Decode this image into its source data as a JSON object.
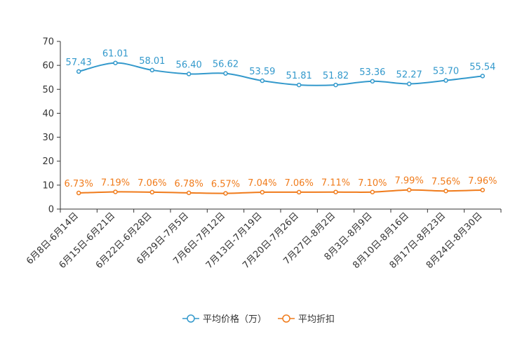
{
  "chart_data": {
    "type": "line",
    "title": "",
    "xlabel": "",
    "ylabel": "",
    "ylim": [
      0,
      70
    ],
    "yticks": [
      0,
      10,
      20,
      30,
      40,
      50,
      60,
      70
    ],
    "grid": false,
    "legend_position": "bottom-center",
    "smooth": true,
    "categories": [
      "6月8日-6月14日",
      "6月15日-6月21日",
      "6月22日-6月28日",
      "6月29日-7月5日",
      "7月6日-7月12日",
      "7月13日-7月19日",
      "7月20日-7月26日",
      "7月27日-8月2日",
      "8月3日-8月9日",
      "8月10日-8月16日",
      "8月17日-8月23日",
      "8月24日-8月30日"
    ],
    "series": [
      {
        "name": "平均价格（万）",
        "color": "#3399cc",
        "values": [
          57.43,
          61.01,
          58.01,
          56.4,
          56.62,
          53.59,
          51.81,
          51.82,
          53.36,
          52.27,
          53.7,
          55.54
        ],
        "labels": [
          "57.43",
          "61.01",
          "58.01",
          "56.40",
          "56.62",
          "53.59",
          "51.81",
          "51.82",
          "53.36",
          "52.27",
          "53.70",
          "55.54"
        ]
      },
      {
        "name": "平均折扣",
        "color": "#f07b1b",
        "values": [
          6.73,
          7.19,
          7.06,
          6.78,
          6.57,
          7.04,
          7.06,
          7.11,
          7.1,
          7.99,
          7.56,
          7.96
        ],
        "labels": [
          "6.73%",
          "7.19%",
          "7.06%",
          "6.78%",
          "6.57%",
          "7.04%",
          "7.06%",
          "7.11%",
          "7.10%",
          "7.99%",
          "7.56%",
          "7.96%"
        ]
      }
    ]
  }
}
